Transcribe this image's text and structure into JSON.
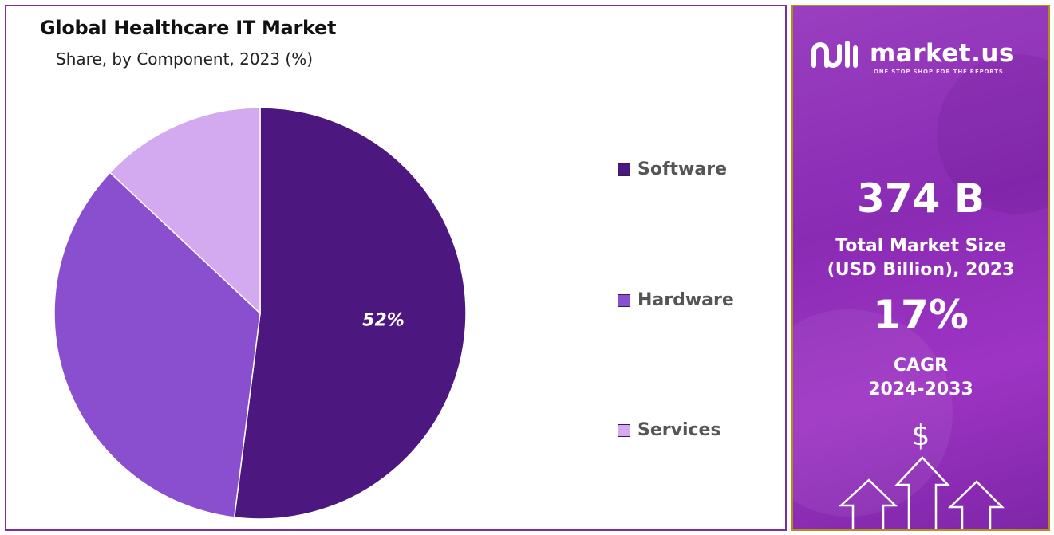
{
  "chart_data": {
    "type": "pie",
    "title": "Global Healthcare IT Market",
    "subtitle": "Share, by Component, 2023 (%)",
    "series": [
      {
        "name": "Software",
        "value": 52,
        "color": "#4d1780",
        "data_label": "52%"
      },
      {
        "name": "Hardware",
        "value": 35,
        "color": "#8a4fcf",
        "data_label": ""
      },
      {
        "name": "Services",
        "value": 13,
        "color": "#d3a9ef",
        "data_label": ""
      }
    ],
    "legend_position": "right"
  },
  "sidebar": {
    "brand_name": "market.us",
    "brand_tagline": "ONE STOP SHOP FOR THE REPORTS",
    "market_size_value": "374 B",
    "market_size_label_line1": "Total Market Size",
    "market_size_label_line2": "(USD Billion), 2023",
    "cagr_value": "17%",
    "cagr_label_line1": "CAGR",
    "cagr_label_line2": "2024-2033",
    "currency_symbol": "$",
    "icons": [
      "market-us-logo-icon",
      "dollar-icon",
      "up-arrow-icon"
    ],
    "accent_color": "#9a3fc0"
  }
}
